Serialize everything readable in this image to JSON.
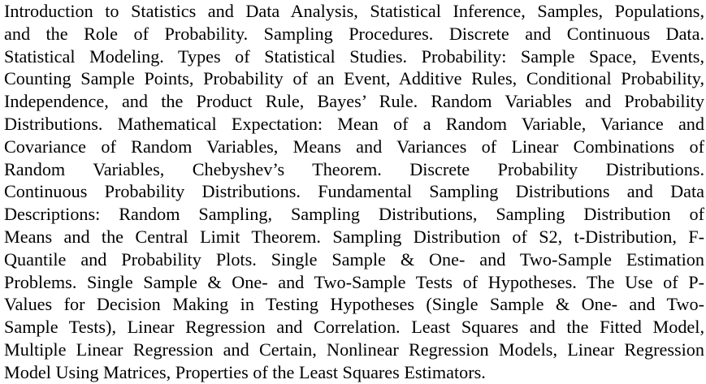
{
  "document": {
    "lines": [
      "Introduction to Statistics and Data Analysis, Statistical Inference, Samples, Populations,",
      "and the Role of Probability. Sampling Procedures. Discrete and Continuous Data.",
      "Statistical Modeling. Types of Statistical Studies. Probability: Sample Space, Events,",
      "Counting Sample Points, Probability of an Event, Additive Rules, Conditional Probability,",
      "Independence, and the Product Rule, Bayes’ Rule. Random Variables and Probability",
      "Distributions. Mathematical Expectation: Mean of a Random Variable, Variance and",
      "Covariance of Random Variables, Means and Variances of Linear Combinations of",
      "Random Variables, Chebyshev’s Theorem. Discrete Probability Distributions.",
      "Continuous Probability Distributions. Fundamental Sampling Distributions and Data",
      "Descriptions: Random Sampling, Sampling Distributions, Sampling Distribution of",
      "Means and the Central Limit Theorem. Sampling Distribution of S2, t-Distribution, F-",
      "Quantile and Probability Plots. Single Sample & One- and Two-Sample Estimation",
      "Problems. Single Sample & One- and Two-Sample Tests of Hypotheses. The Use of P-",
      "Values for Decision Making in Testing Hypotheses (Single Sample & One- and Two-",
      "Sample Tests), Linear Regression and Correlation. Least Squares and the Fitted Model,",
      "Multiple Linear Regression and Certain, Nonlinear Regression Models, Linear Regression",
      "Model Using Matrices, Properties of the Least Squares Estimators."
    ]
  }
}
